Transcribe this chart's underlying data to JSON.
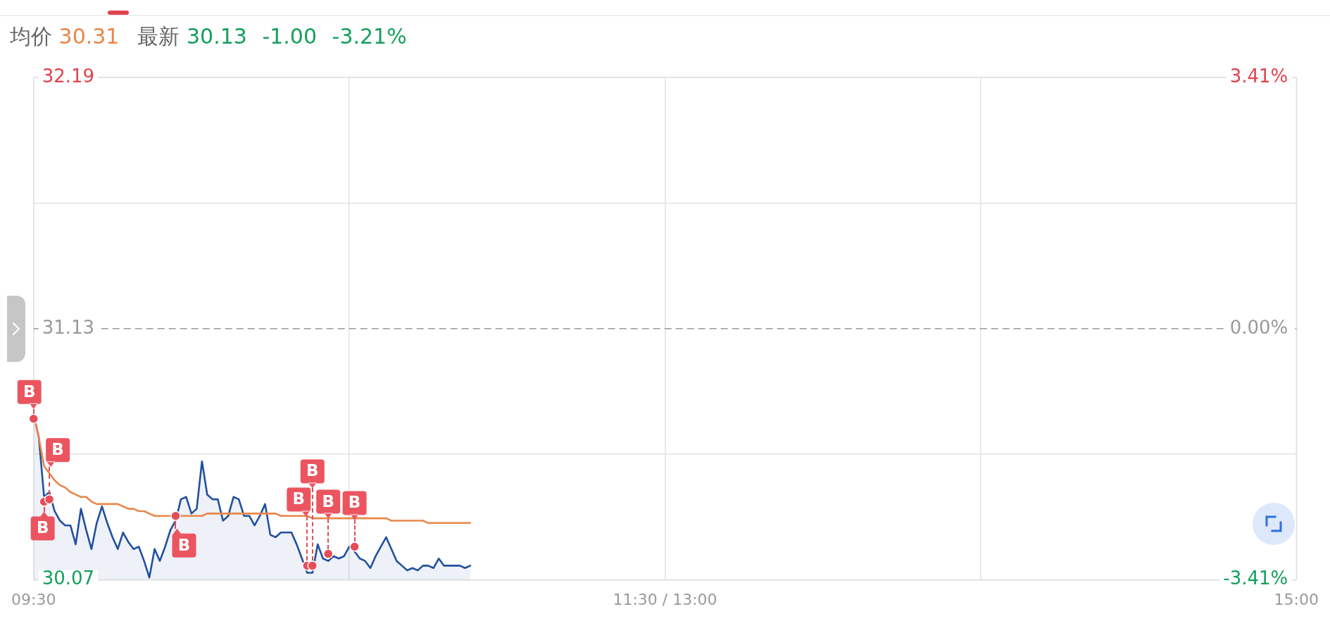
{
  "chart_data": {
    "type": "area",
    "annotations": [
      "均价 30.31",
      "最新 30.13 -1.00 -3.21%"
    ],
    "categories": [
      "09:30",
      null,
      null,
      null,
      null,
      null,
      null,
      null,
      null,
      null,
      null,
      null,
      null,
      null,
      null,
      null,
      null,
      null,
      null,
      null,
      null,
      null,
      null,
      null,
      null,
      null,
      null,
      null,
      null,
      null,
      null,
      null,
      null,
      null,
      null,
      null,
      null,
      null,
      null,
      null,
      null,
      null,
      null,
      null,
      null,
      null,
      null,
      null,
      null,
      null,
      null,
      null,
      null,
      null,
      null,
      null,
      null,
      null,
      null,
      null,
      null,
      null,
      null,
      null,
      null,
      null,
      null,
      null,
      null,
      null,
      null,
      null,
      null,
      null,
      null,
      null,
      null,
      null,
      null,
      null,
      null,
      null,
      null,
      null,
      null,
      null,
      null,
      null,
      null,
      null,
      null,
      null,
      null,
      null,
      null,
      null,
      null,
      null,
      null,
      null,
      null,
      null,
      null,
      null,
      null,
      null,
      null,
      null,
      null,
      null,
      null,
      null,
      null,
      null,
      null,
      null,
      null,
      null,
      null,
      null,
      "11:30 / 13:00",
      null,
      null,
      null,
      null,
      null,
      null,
      null,
      null,
      null,
      null,
      null,
      null,
      null,
      null,
      null,
      null,
      null,
      null,
      null,
      null,
      null,
      null,
      null,
      null,
      null,
      null,
      null,
      null,
      null,
      null,
      null,
      null,
      null,
      null,
      null,
      null,
      null,
      null,
      null,
      null,
      null,
      null,
      null,
      null,
      null,
      null,
      null,
      null,
      null,
      null,
      null,
      null,
      null,
      null,
      null,
      null,
      null,
      null,
      null,
      null,
      null,
      null,
      null,
      null,
      null,
      null,
      null,
      null,
      null,
      null,
      null,
      null,
      null,
      null,
      null,
      null,
      null,
      null,
      null,
      null,
      null,
      null,
      null,
      null,
      null,
      null,
      null,
      null,
      null,
      null,
      null,
      null,
      null,
      null,
      null,
      null,
      null,
      null,
      null,
      null,
      null,
      null,
      null,
      null,
      null,
      null,
      null,
      null,
      null,
      null,
      null,
      null,
      null,
      null,
      null,
      null,
      null,
      null,
      null,
      "15:00"
    ],
    "ylim": [
      30.07,
      32.19
    ],
    "yticks": [
      30.07,
      {
        "value": 30.6,
        "label": null
      },
      31.13,
      {
        "value": 31.66,
        "label": null
      },
      32.19
    ],
    "y2lim": [
      -3.41,
      3.41
    ],
    "y2ticks": [
      {
        "value": -3.41,
        "label": "-3.41%"
      },
      {
        "value": 0,
        "label": "0.00%"
      },
      {
        "value": 3.41,
        "label": "3.41%"
      }
    ],
    "ref_lines": [
      {
        "axis": "y",
        "value": 31.13,
        "color": "#9a9a9a",
        "line_style": "dashed"
      }
    ],
    "grid": true,
    "series": [
      {
        "color": "#21509f",
        "values": [
          30.77,
          30.67,
          30.42,
          30.44,
          30.36,
          30.32,
          30.3,
          30.3,
          30.22,
          30.37,
          30.28,
          30.2,
          30.31,
          30.38,
          30.31,
          30.25,
          30.2,
          30.27,
          30.23,
          30.2,
          30.21,
          30.15,
          30.08,
          30.2,
          30.15,
          30.21,
          30.28,
          30.32,
          30.41,
          30.42,
          30.35,
          30.37,
          30.57,
          30.43,
          30.41,
          30.41,
          30.32,
          30.34,
          30.42,
          30.41,
          30.34,
          30.34,
          30.3,
          30.34,
          30.39,
          30.26,
          30.25,
          30.27,
          30.27,
          30.27,
          30.22,
          30.16,
          30.1,
          30.1,
          30.22,
          30.16,
          30.15,
          30.17,
          30.16,
          30.17,
          30.21,
          30.19,
          30.16,
          30.15,
          30.12,
          30.17,
          30.21,
          30.25,
          30.2,
          30.15,
          30.13,
          30.11,
          30.12,
          30.11,
          30.13,
          30.13,
          30.12,
          30.16,
          30.13,
          30.13,
          30.13,
          30.13,
          30.12,
          30.13,
          null,
          null,
          null,
          null,
          null,
          null,
          null,
          null,
          null,
          null,
          null,
          null,
          null,
          null,
          null,
          null,
          null,
          null,
          null,
          null,
          null,
          null,
          null,
          null,
          null,
          null,
          null,
          null,
          null,
          null,
          null,
          null,
          null,
          null,
          null,
          null,
          null,
          null,
          null,
          null,
          null,
          null,
          null,
          null,
          null,
          null,
          null,
          null,
          null,
          null,
          null,
          null,
          null,
          null,
          null,
          null,
          null,
          null,
          null,
          null,
          null,
          null,
          null,
          null,
          null,
          null,
          null,
          null,
          null,
          null,
          null,
          null,
          null,
          null,
          null,
          null,
          null,
          null,
          null,
          null,
          null,
          null,
          null,
          null,
          null,
          null,
          null,
          null,
          null,
          null,
          null,
          null,
          null,
          null,
          null,
          null,
          null,
          null,
          null,
          null,
          null,
          null,
          null,
          null,
          null,
          null,
          null,
          null,
          null,
          null,
          null,
          null,
          null,
          null,
          null,
          null,
          null,
          null,
          null,
          null,
          null,
          null,
          null,
          null,
          null,
          null,
          null,
          null,
          null,
          null,
          null,
          null,
          null,
          null,
          null,
          null,
          null,
          null,
          null,
          null,
          null,
          null,
          null,
          null,
          null,
          null,
          null,
          null,
          null,
          null,
          null,
          null,
          null,
          null,
          null,
          null,
          null
        ]
      },
      {
        "type": "line",
        "color": "#e8874c",
        "values": [
          30.77,
          30.67,
          30.55,
          30.52,
          30.49,
          30.47,
          30.46,
          30.44,
          30.43,
          30.42,
          30.42,
          30.4,
          30.39,
          30.39,
          30.39,
          30.39,
          30.39,
          30.38,
          30.37,
          30.37,
          30.36,
          30.36,
          30.35,
          30.34,
          30.34,
          30.34,
          30.34,
          30.34,
          30.34,
          30.34,
          30.34,
          30.34,
          30.34,
          30.35,
          30.35,
          30.35,
          30.35,
          30.35,
          30.35,
          30.35,
          30.35,
          30.35,
          30.35,
          30.35,
          30.35,
          30.35,
          30.35,
          30.34,
          30.34,
          30.34,
          30.34,
          30.34,
          30.34,
          30.33,
          30.33,
          30.33,
          30.33,
          30.33,
          30.33,
          30.33,
          30.33,
          30.33,
          30.33,
          30.33,
          30.33,
          30.33,
          30.33,
          30.33,
          30.32,
          30.32,
          30.32,
          30.32,
          30.32,
          30.32,
          30.32,
          30.31,
          30.31,
          30.31,
          30.31,
          30.31,
          30.31,
          30.31,
          30.31,
          30.31,
          null,
          null,
          null,
          null,
          null,
          null,
          null,
          null,
          null,
          null,
          null,
          null,
          null,
          null,
          null,
          null,
          null,
          null,
          null,
          null,
          null,
          null,
          null,
          null,
          null,
          null,
          null,
          null,
          null,
          null,
          null,
          null,
          null,
          null,
          null,
          null,
          null,
          null,
          null,
          null,
          null,
          null,
          null,
          null,
          null,
          null,
          null,
          null,
          null,
          null,
          null,
          null,
          null,
          null,
          null,
          null,
          null,
          null,
          null,
          null,
          null,
          null,
          null,
          null,
          null,
          null,
          null,
          null,
          null,
          null,
          null,
          null,
          null,
          null,
          null,
          null,
          null,
          null,
          null,
          null,
          null,
          null,
          null,
          null,
          null,
          null,
          null,
          null,
          null,
          null,
          null,
          null,
          null,
          null,
          null,
          null,
          null,
          null,
          null,
          null,
          null,
          null,
          null,
          null,
          null,
          null,
          null,
          null,
          null,
          null,
          null,
          null,
          null,
          null,
          null,
          null,
          null,
          null,
          null,
          null,
          null,
          null,
          null,
          null,
          null,
          null,
          null,
          null,
          null,
          null,
          null,
          null,
          null,
          null,
          null,
          null,
          null,
          null,
          null,
          null,
          null,
          null,
          null,
          null,
          null,
          null,
          null,
          null,
          null,
          null,
          null,
          null,
          null,
          null,
          null,
          null,
          null
        ]
      },
      {
        "type": "scatter",
        "color": "#e84c58",
        "marker": "circle",
        "values": [
          30.75,
          null,
          30.4,
          30.41,
          null,
          null,
          null,
          null,
          null,
          null,
          null,
          null,
          null,
          null,
          null,
          null,
          null,
          null,
          null,
          null,
          null,
          null,
          null,
          null,
          null,
          null,
          null,
          30.34,
          null,
          null,
          null,
          null,
          null,
          null,
          null,
          null,
          null,
          null,
          null,
          null,
          null,
          null,
          null,
          null,
          null,
          null,
          null,
          null,
          null,
          null,
          null,
          null,
          30.13,
          30.13,
          null,
          null,
          30.18,
          null,
          null,
          null,
          null,
          30.21,
          null,
          null,
          null,
          null,
          null,
          null,
          null,
          null,
          null,
          null,
          null,
          null,
          null,
          null,
          null,
          null,
          null,
          null,
          null,
          null,
          null,
          null,
          null,
          null,
          null,
          null,
          null,
          null,
          null,
          null,
          null,
          null,
          null,
          null,
          null,
          null,
          null,
          null,
          null,
          null,
          null,
          null,
          null,
          null,
          null,
          null,
          null,
          null,
          null,
          null,
          null,
          null,
          null,
          null,
          null,
          null,
          null,
          null,
          null,
          null,
          null,
          null,
          null,
          null,
          null,
          null,
          null,
          null,
          null,
          null,
          null,
          null,
          null,
          null,
          null,
          null,
          null,
          null,
          null,
          null,
          null,
          null,
          null,
          null,
          null,
          null,
          null,
          null,
          null,
          null,
          null,
          null,
          null,
          null,
          null,
          null,
          null,
          null,
          null,
          null,
          null,
          null,
          null,
          null,
          null,
          null,
          null,
          null,
          null,
          null,
          null,
          null,
          null,
          null,
          null,
          null,
          null,
          null,
          null,
          null,
          null,
          null,
          null,
          null,
          null,
          null,
          null,
          null,
          null,
          null,
          null,
          null,
          null,
          null,
          null,
          null,
          null,
          null,
          null,
          null,
          null,
          null,
          null,
          null,
          null,
          null,
          null,
          null,
          null,
          null,
          null,
          null,
          null,
          null,
          null,
          null,
          null,
          null,
          null,
          null,
          null,
          null,
          null,
          null,
          null,
          null,
          null,
          null,
          null,
          null,
          null,
          null,
          null,
          null,
          null,
          null,
          null,
          null,
          null
        ],
        "value_labels": [
          "B",
          null,
          "B",
          "B",
          null,
          null,
          null,
          null,
          null,
          null,
          null,
          null,
          null,
          null,
          null,
          null,
          null,
          null,
          null,
          null,
          null,
          null,
          null,
          null,
          null,
          null,
          null,
          "B",
          null,
          null,
          null,
          null,
          null,
          null,
          null,
          null,
          null,
          null,
          null,
          null,
          null,
          null,
          null,
          null,
          null,
          null,
          null,
          null,
          null,
          null,
          null,
          null,
          "B",
          "B",
          null,
          null,
          "B",
          null,
          null,
          null,
          null,
          "B",
          null,
          null,
          null,
          null,
          null,
          null,
          null,
          null,
          null,
          null,
          null,
          null,
          null,
          null,
          null,
          null,
          null,
          null,
          null,
          null,
          null,
          null,
          null,
          null,
          null,
          null,
          null,
          null,
          null,
          null,
          null,
          null,
          null,
          null,
          null,
          null,
          null,
          null,
          null,
          null,
          null,
          null,
          null,
          null,
          null,
          null,
          null,
          null,
          null,
          null,
          null,
          null,
          null,
          null,
          null,
          null,
          null,
          null,
          null,
          null,
          null,
          null,
          null,
          null,
          null,
          null,
          null,
          null,
          null,
          null,
          null,
          null,
          null,
          null,
          null,
          null,
          null,
          null,
          null,
          null,
          null,
          null,
          null,
          null,
          null,
          null,
          null,
          null,
          null,
          null,
          null,
          null,
          null,
          null,
          null,
          null,
          null,
          null,
          null,
          null,
          null,
          null,
          null,
          null,
          null,
          null,
          null,
          null,
          null,
          null,
          null,
          null,
          null,
          null,
          null,
          null,
          null,
          null,
          null,
          null,
          null,
          null,
          null,
          null,
          null,
          null,
          null,
          null,
          null,
          null,
          null,
          null,
          null,
          null,
          null,
          null,
          null,
          null,
          null,
          null,
          null,
          null,
          null,
          null,
          null,
          null,
          null,
          null,
          null,
          null,
          null,
          null,
          null,
          null,
          null,
          null,
          null,
          null,
          null,
          null,
          null,
          null,
          null,
          null,
          null,
          null,
          null,
          null,
          null,
          null,
          null,
          null,
          null,
          null,
          null,
          null,
          null,
          null,
          null
        ]
      }
    ]
  }
}
